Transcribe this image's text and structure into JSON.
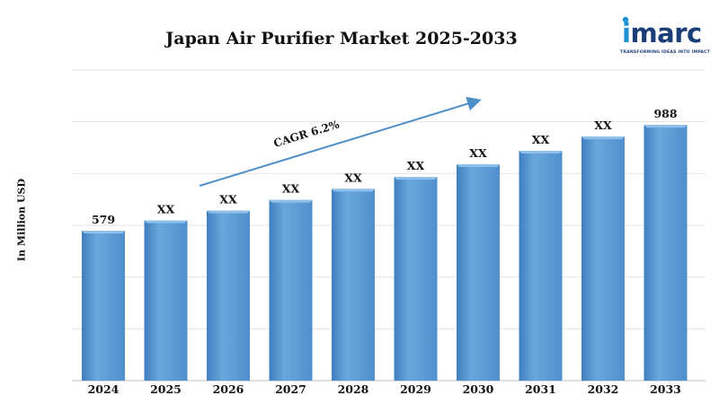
{
  "logo": {
    "word_i": "i",
    "word_rest": "marc",
    "tagline": "TRANSFORMING IDEAS INTO IMPACT",
    "colors": {
      "accent": "#1f8fd6",
      "brand": "#1a3f78"
    }
  },
  "chart_data": {
    "type": "bar",
    "title": "Japan Air Purifier Market 2025-2033",
    "ylabel": "In Million USD",
    "xlabel": "",
    "categories": [
      "2024",
      "2025",
      "2026",
      "2027",
      "2028",
      "2029",
      "2030",
      "2031",
      "2032",
      "2033"
    ],
    "values": [
      579,
      619,
      657,
      698,
      741,
      787,
      836,
      888,
      943,
      988
    ],
    "data_labels": [
      "579",
      "XX",
      "XX",
      "XX",
      "XX",
      "XX",
      "XX",
      "XX",
      "XX",
      "988"
    ],
    "ylim": [
      0,
      1200
    ],
    "grid": true,
    "bar_color": "#5b9bd5",
    "annotation": {
      "text": "CAGR 6.2%",
      "type": "arrow",
      "color": "#4f8fc7"
    }
  }
}
